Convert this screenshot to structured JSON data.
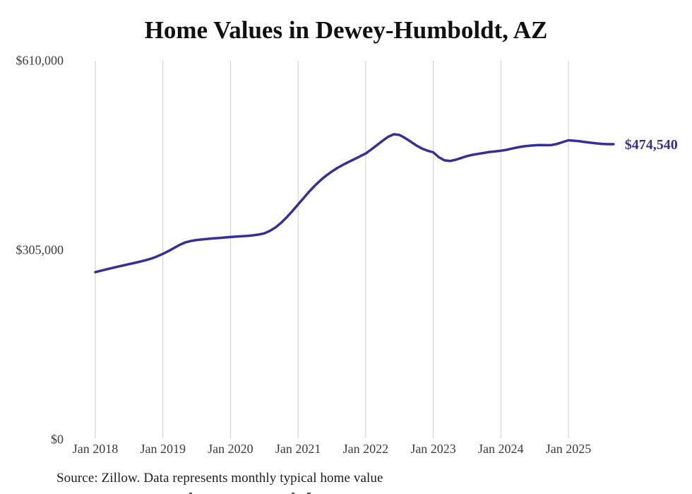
{
  "title": "Home Values in Dewey-Humboldt, AZ",
  "source_note": "Source: Zillow. Data represents monthly typical home value",
  "chart_data": {
    "type": "line",
    "title": "Home Values in Dewey-Humboldt, AZ",
    "xlabel": "",
    "ylabel": "",
    "unit": "USD",
    "ylim": [
      0,
      610000
    ],
    "grid": "vertical-only",
    "legend": "none",
    "line_color": "#343098",
    "grid_color": "#cbcbcb",
    "tick_label_color": "#3d3d3d",
    "end_label": "$474,540",
    "end_value": 474540,
    "y_ticks": [
      {
        "label": "$610,000",
        "value": 610000
      },
      {
        "label": "$305,000",
        "value": 305000
      },
      {
        "label": "$0",
        "value": 0
      }
    ],
    "x_ticks": [
      "Jan 2018",
      "Jan 2019",
      "Jan 2020",
      "Jan 2021",
      "Jan 2022",
      "Jan 2023",
      "Jan 2024",
      "Jan 2025"
    ],
    "series": [
      {
        "name": "Typical home value",
        "start_month": "Jan 2018",
        "end_month": "Sep 2025",
        "interval": "monthly",
        "values": [
          268500,
          270800,
          273000,
          275200,
          277300,
          279400,
          281400,
          283400,
          285500,
          287800,
          290500,
          294000,
          298000,
          302500,
          307500,
          312500,
          316500,
          318800,
          320200,
          321200,
          322100,
          322900,
          323600,
          324300,
          325000,
          325800,
          326400,
          327000,
          327800,
          329000,
          331000,
          335000,
          340500,
          348000,
          357000,
          367000,
          377500,
          388000,
          398500,
          408000,
          416500,
          424000,
          430500,
          436500,
          441500,
          446000,
          450500,
          455000,
          459500,
          466000,
          473000,
          480000,
          486500,
          490500,
          489500,
          484500,
          478500,
          472500,
          467500,
          464000,
          461500,
          453500,
          448500,
          447500,
          449500,
          452500,
          455500,
          457500,
          459000,
          460500,
          462000,
          463000,
          464000,
          465500,
          467500,
          469500,
          471000,
          472000,
          472800,
          473200,
          473000,
          473200,
          475000,
          478000,
          480800,
          480200,
          479200,
          478000,
          476800,
          475800,
          475000,
          474600,
          474540
        ]
      }
    ]
  }
}
